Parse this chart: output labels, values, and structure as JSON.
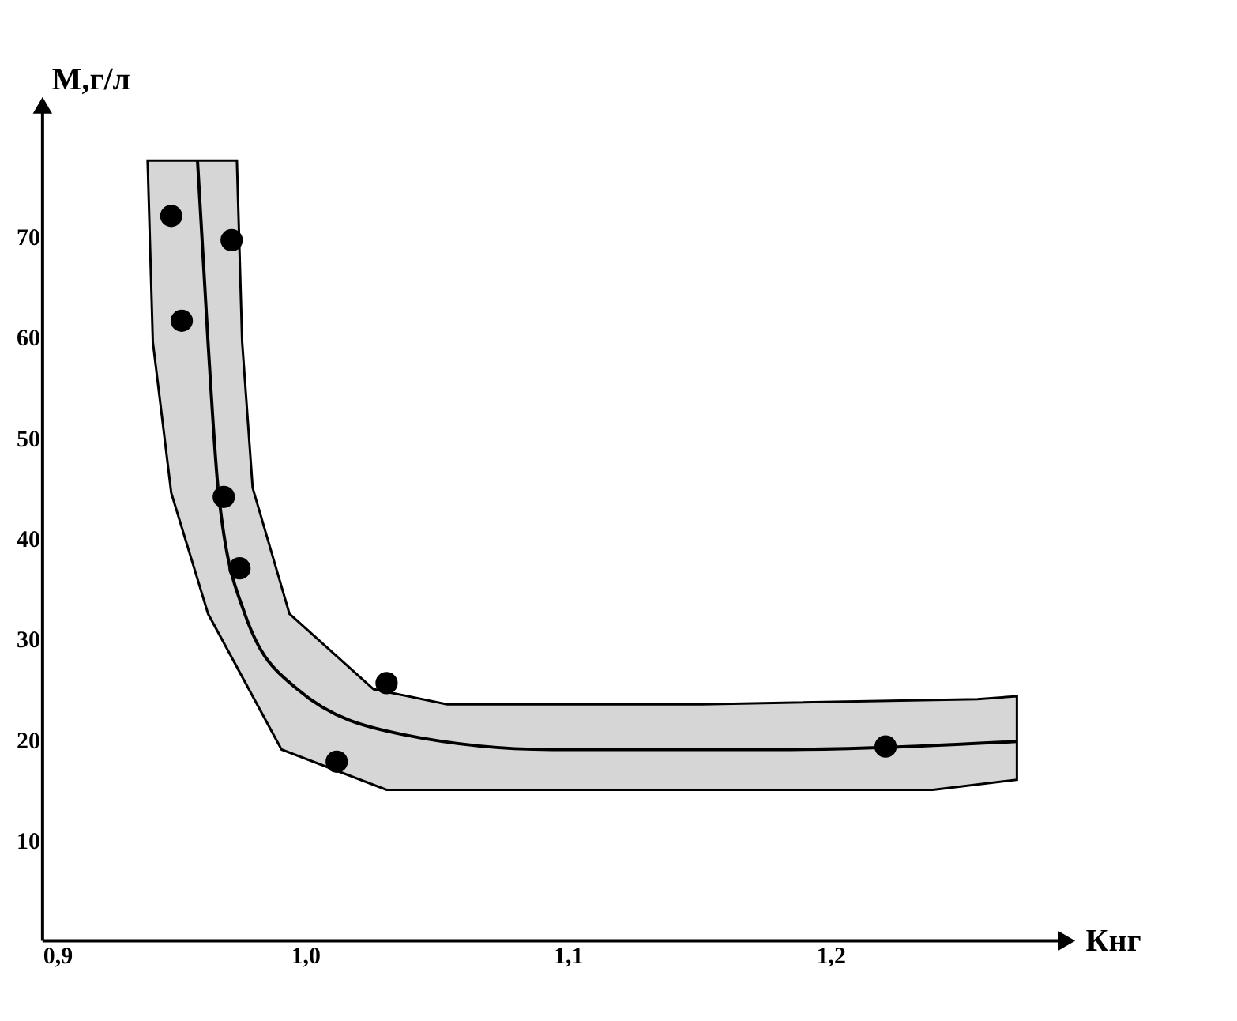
{
  "chart_data": {
    "type": "scatter",
    "xlabel": "Кнг",
    "ylabel": "М,г/л",
    "xlim": [
      0.9,
      1.29
    ],
    "ylim": [
      0,
      83
    ],
    "xticks": [
      {
        "value": 0.9,
        "label": "0,9"
      },
      {
        "value": 1.0,
        "label": "1,0"
      },
      {
        "value": 1.1,
        "label": "1,1"
      },
      {
        "value": 1.2,
        "label": "1,2"
      }
    ],
    "yticks": [
      10,
      20,
      30,
      40,
      50,
      60,
      70
    ],
    "grid": false,
    "series": [
      {
        "type": "area",
        "color": "#bbbbbb",
        "x": [
          0.94,
          0.942,
          0.949,
          0.963,
          0.991,
          1.031,
          1.239,
          1.271,
          1.271,
          1.256,
          1.151,
          1.054,
          1.026,
          0.994,
          0.98,
          0.976,
          0.974
        ],
        "values": [
          77.5,
          59.5,
          44.5,
          32.5,
          19,
          15,
          15,
          16,
          24.3,
          24,
          23.5,
          23.5,
          25,
          32.5,
          45,
          59.5,
          77.5
        ]
      },
      {
        "type": "line",
        "line_style": "solid",
        "color": "#000000",
        "x": [
          0.959,
          0.963,
          0.967,
          0.977,
          0.997,
          1.037,
          1.094,
          1.18,
          1.271
        ],
        "values": [
          77.5,
          59.5,
          44.5,
          32.5,
          25,
          20.5,
          19,
          19,
          19.8
        ]
      },
      {
        "type": "scatter",
        "marker": "circle",
        "color": "#000000",
        "x": [
          0.949,
          0.953,
          0.972,
          0.969,
          0.975,
          1.031,
          1.012,
          1.221
        ],
        "values": [
          72,
          61.6,
          69.6,
          44.1,
          37,
          25.6,
          17.8,
          19.3
        ]
      }
    ]
  }
}
